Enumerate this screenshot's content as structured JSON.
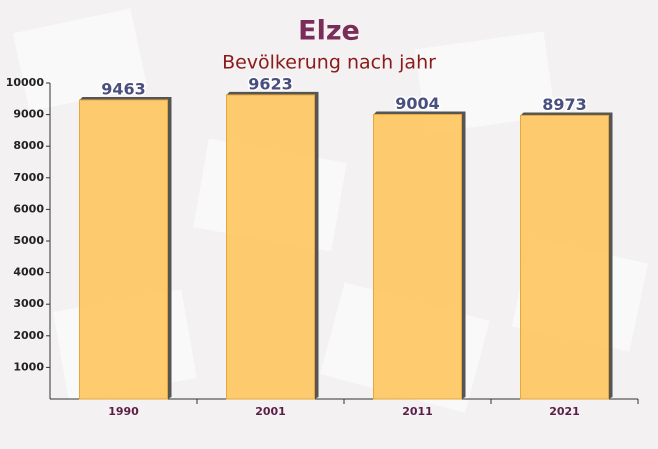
{
  "chart_data": {
    "type": "bar",
    "title": "Elze",
    "subtitle": "Bevölkerung nach jahr",
    "categories": [
      "1990",
      "2001",
      "2011",
      "2021"
    ],
    "values": [
      9463,
      9623,
      9004,
      8973
    ],
    "color": "#fec65f",
    "ylim": [
      0,
      10000
    ],
    "yticks": [
      1000,
      2000,
      3000,
      4000,
      5000,
      6000,
      7000,
      8000,
      9000,
      10000
    ],
    "grid": false
  }
}
